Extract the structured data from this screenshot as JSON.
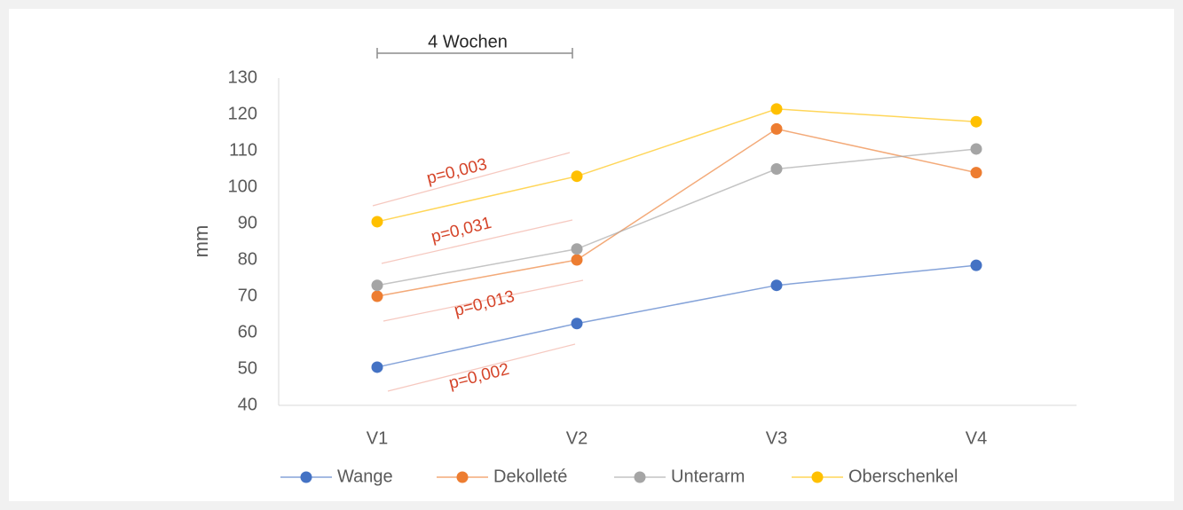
{
  "chart_data": {
    "type": "line",
    "categories": [
      "V1",
      "V2",
      "V3",
      "V4"
    ],
    "series": [
      {
        "name": "Wange",
        "color": "#4472c4",
        "values": [
          50.5,
          62.5,
          73,
          78.5
        ]
      },
      {
        "name": "Dekolleté",
        "color": "#ed7d31",
        "values": [
          70,
          80,
          116,
          104
        ]
      },
      {
        "name": "Unterarm",
        "color": "#a5a5a5",
        "values": [
          73,
          83,
          105,
          110.5
        ]
      },
      {
        "name": "Oberschenkel",
        "color": "#ffc000",
        "values": [
          90.5,
          103,
          121.5,
          118
        ]
      }
    ],
    "y_label": "mm",
    "ylim": [
      40,
      130
    ],
    "yticks": [
      40,
      50,
      60,
      70,
      80,
      90,
      100,
      110,
      120,
      130
    ],
    "annotations": [
      "4 Wochen",
      "p=0,003",
      "p=0,031",
      "p=0,013",
      "p=0,002"
    ],
    "annotation_color": "#d5452a",
    "legend": "bottom"
  }
}
